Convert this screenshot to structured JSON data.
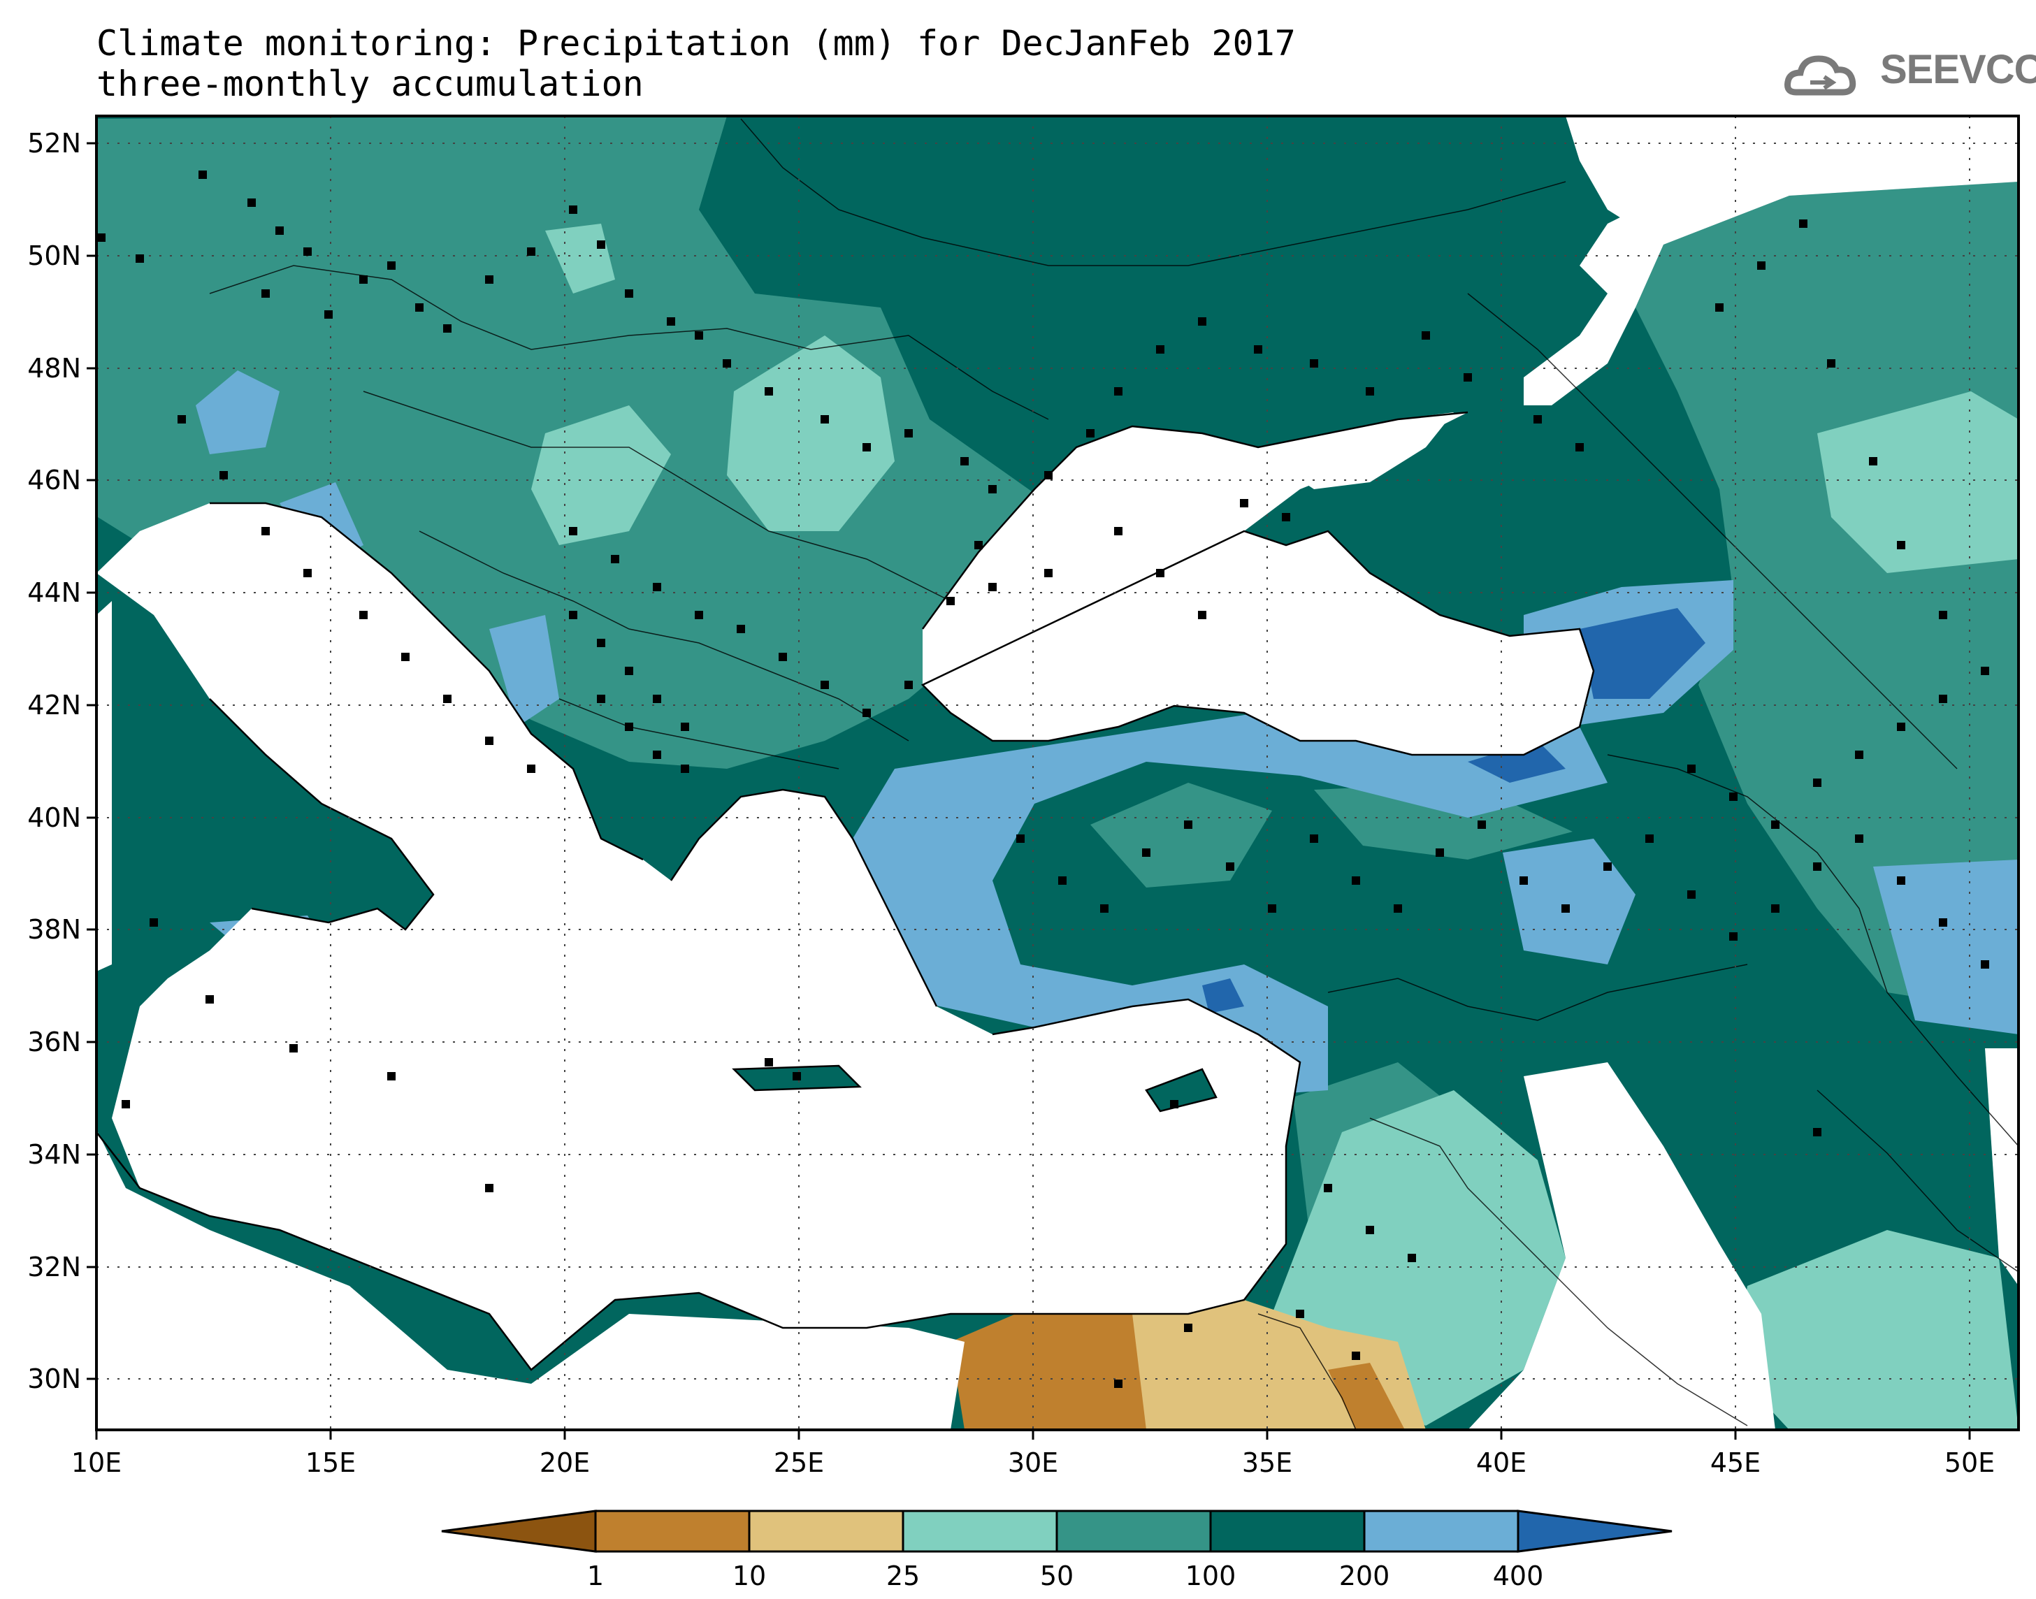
{
  "title": {
    "line1": "Climate monitoring: Precipitation (mm) for DecJanFeb 2017",
    "line2": "three-monthly accumulation"
  },
  "logo": {
    "text": "SEEVCCC",
    "icon": "cloud-icon"
  },
  "map": {
    "lon_ticks": [
      "10E",
      "15E",
      "20E",
      "25E",
      "30E",
      "35E",
      "40E",
      "45E",
      "50E"
    ],
    "lat_ticks": [
      "52N",
      "50N",
      "48N",
      "46N",
      "44N",
      "42N",
      "40N",
      "38N",
      "36N",
      "34N",
      "32N",
      "30N"
    ],
    "lon_range": [
      10,
      51
    ],
    "lat_range": [
      29,
      52.5
    ]
  },
  "colorbar": {
    "labels": [
      "1",
      "10",
      "25",
      "50",
      "100",
      "200",
      "400"
    ],
    "colors": [
      "#8c5410",
      "#bf802e",
      "#e0c27c",
      "#80d0bf",
      "#359487",
      "#01665e",
      "#6baed6",
      "#2166ac"
    ]
  }
}
